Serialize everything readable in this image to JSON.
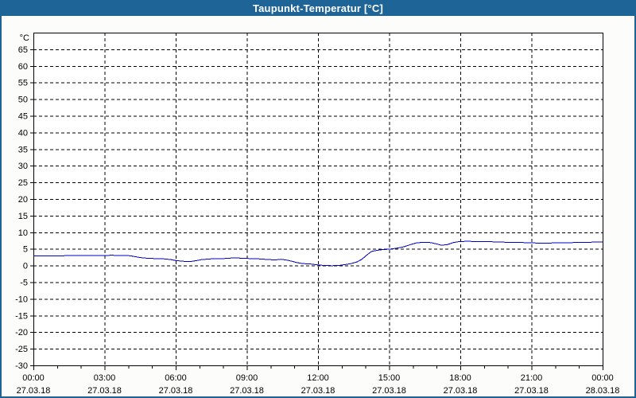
{
  "window": {
    "title": "Taupunkt-Temperatur [°C]",
    "colors": {
      "title_bar": "#1F6496",
      "border": "#1F6496",
      "window_background": "#FCFDFB",
      "plot_background": "#FFFFFF",
      "axis": "#000000",
      "grid": "#000000",
      "label_text": "#000000",
      "title_text": "#FFFFFF"
    }
  },
  "chart_data": {
    "type": "line",
    "title": "Taupunkt-Temperatur [°C]",
    "ylabel": "°C",
    "ylim": [
      -30,
      70
    ],
    "y_tick_step": 5,
    "y_ticks": [
      65,
      60,
      55,
      50,
      45,
      40,
      35,
      30,
      25,
      20,
      15,
      10,
      5,
      0,
      -5,
      -10,
      -15,
      -20,
      -25,
      -30
    ],
    "x_hours": [
      0,
      24
    ],
    "x_major_step_hours": 3,
    "x_minor_step_hours": 1,
    "x_ticks": [
      {
        "time": "00:00",
        "date": "27.03.18"
      },
      {
        "time": "03:00",
        "date": "27.03.18"
      },
      {
        "time": "06:00",
        "date": "27.03.18"
      },
      {
        "time": "09:00",
        "date": "27.03.18"
      },
      {
        "time": "12:00",
        "date": "27.03.18"
      },
      {
        "time": "15:00",
        "date": "27.03.18"
      },
      {
        "time": "18:00",
        "date": "27.03.18"
      },
      {
        "time": "21:00",
        "date": "27.03.18"
      },
      {
        "time": "00:00",
        "date": "28.03.18"
      }
    ],
    "grid": true,
    "grid_style": "dashed",
    "legend": false,
    "series": [
      {
        "name": "Taupunkt-Temperatur",
        "color": "#0000C0",
        "points": [
          [
            0.0,
            2.9
          ],
          [
            0.5,
            2.9
          ],
          [
            1.0,
            2.9
          ],
          [
            1.5,
            3.0
          ],
          [
            2.0,
            3.0
          ],
          [
            2.5,
            3.0
          ],
          [
            3.0,
            3.0
          ],
          [
            3.3,
            3.1
          ],
          [
            3.6,
            3.0
          ],
          [
            4.0,
            3.0
          ],
          [
            4.2,
            2.8
          ],
          [
            4.5,
            2.4
          ],
          [
            4.8,
            2.2
          ],
          [
            5.1,
            2.1
          ],
          [
            5.5,
            2.0
          ],
          [
            5.8,
            1.8
          ],
          [
            6.0,
            1.5
          ],
          [
            6.3,
            1.3
          ],
          [
            6.6,
            1.2
          ],
          [
            6.9,
            1.5
          ],
          [
            7.1,
            1.8
          ],
          [
            7.5,
            2.0
          ],
          [
            7.9,
            2.0
          ],
          [
            8.2,
            2.2
          ],
          [
            8.5,
            2.3
          ],
          [
            8.8,
            2.2
          ],
          [
            9.1,
            2.1
          ],
          [
            9.5,
            2.0
          ],
          [
            9.9,
            1.8
          ],
          [
            10.2,
            1.7
          ],
          [
            10.45,
            1.9
          ],
          [
            10.7,
            1.6
          ],
          [
            10.9,
            1.3
          ],
          [
            11.1,
            0.9
          ],
          [
            11.35,
            0.6
          ],
          [
            11.7,
            0.45
          ],
          [
            12.0,
            0.2
          ],
          [
            12.3,
            0.0
          ],
          [
            12.6,
            -0.05
          ],
          [
            12.9,
            0.05
          ],
          [
            13.1,
            0.25
          ],
          [
            13.4,
            0.6
          ],
          [
            13.65,
            1.1
          ],
          [
            13.85,
            1.9
          ],
          [
            14.05,
            3.1
          ],
          [
            14.25,
            4.2
          ],
          [
            14.5,
            4.6
          ],
          [
            14.75,
            4.8
          ],
          [
            15.0,
            4.9
          ],
          [
            15.3,
            5.2
          ],
          [
            15.6,
            5.6
          ],
          [
            15.9,
            6.3
          ],
          [
            16.15,
            6.8
          ],
          [
            16.45,
            7.0
          ],
          [
            16.75,
            6.9
          ],
          [
            17.0,
            6.5
          ],
          [
            17.2,
            6.1
          ],
          [
            17.45,
            6.3
          ],
          [
            17.7,
            6.9
          ],
          [
            17.95,
            7.2
          ],
          [
            18.3,
            7.3
          ],
          [
            18.7,
            7.2
          ],
          [
            19.1,
            7.2
          ],
          [
            19.5,
            7.1
          ],
          [
            19.9,
            7.0
          ],
          [
            20.3,
            7.0
          ],
          [
            20.7,
            6.9
          ],
          [
            21.0,
            6.9
          ],
          [
            21.3,
            6.7
          ],
          [
            21.6,
            6.7
          ],
          [
            21.9,
            6.8
          ],
          [
            22.3,
            6.8
          ],
          [
            22.7,
            6.9
          ],
          [
            23.1,
            7.0
          ],
          [
            23.5,
            7.0
          ],
          [
            23.8,
            7.1
          ],
          [
            24.0,
            7.1
          ]
        ]
      }
    ]
  }
}
